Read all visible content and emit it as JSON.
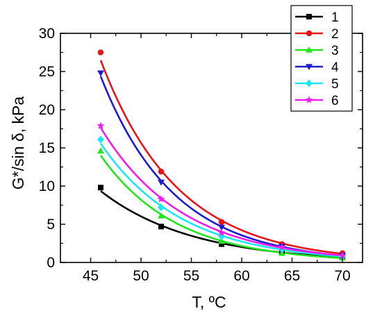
{
  "chart_data": {
    "type": "line",
    "title": "",
    "xlabel": "T, ºC",
    "ylabel": "G*/sin δ, kPa",
    "xlim": [
      42,
      72
    ],
    "ylim": [
      0,
      30
    ],
    "x_ticks": [
      45,
      50,
      55,
      60,
      65,
      70
    ],
    "y_ticks": [
      0,
      5,
      10,
      15,
      20,
      25,
      30
    ],
    "x": [
      46,
      52,
      58,
      64,
      70
    ],
    "grid": false,
    "legend_position": "top-right",
    "series": [
      {
        "name": "1",
        "color": "#000000",
        "marker": "square",
        "values": [
          9.8,
          4.7,
          2.4,
          1.3,
          0.7
        ]
      },
      {
        "name": "2",
        "color": "#e8141a",
        "marker": "circle",
        "values": [
          27.5,
          11.9,
          5.3,
          2.4,
          1.2
        ]
      },
      {
        "name": "3",
        "color": "#22e51c",
        "marker": "triangle-up",
        "values": [
          14.6,
          6.1,
          2.8,
          1.2,
          0.6
        ]
      },
      {
        "name": "4",
        "color": "#1c1ad4",
        "marker": "triangle-down",
        "values": [
          24.8,
          10.5,
          4.6,
          2.1,
          0.9
        ]
      },
      {
        "name": "5",
        "color": "#19e8f2",
        "marker": "diamond",
        "values": [
          16.1,
          7.2,
          3.4,
          1.7,
          0.8
        ]
      },
      {
        "name": "6",
        "color": "#ee1cee",
        "marker": "star",
        "values": [
          17.9,
          8.3,
          3.9,
          2.0,
          0.9
        ]
      }
    ]
  }
}
